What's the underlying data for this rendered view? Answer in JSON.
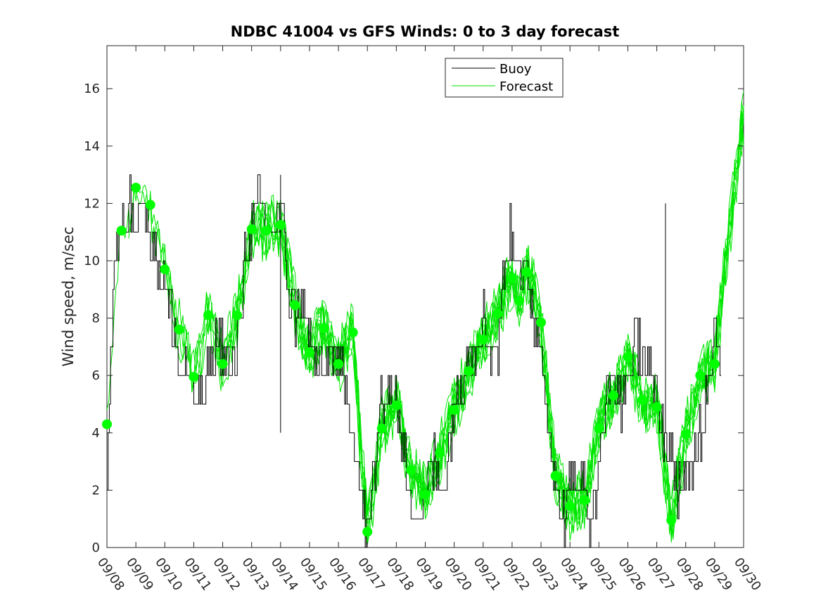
{
  "chart_data": {
    "type": "line",
    "title": "NDBC 41004 vs GFS Winds: 0 to 3 day forecast",
    "ylabel": "Wind speed, m/sec",
    "xlabel": "",
    "ylim": [
      0,
      17.5
    ],
    "yticks": [
      0,
      2,
      4,
      6,
      8,
      10,
      12,
      14,
      16
    ],
    "x_range_days": [
      8,
      30
    ],
    "x_tick_labels": [
      "09/08",
      "09/09",
      "09/10",
      "09/11",
      "09/12",
      "09/13",
      "09/14",
      "09/15",
      "09/16",
      "09/17",
      "09/18",
      "09/19",
      "09/20",
      "09/21",
      "09/22",
      "09/23",
      "09/24",
      "09/25",
      "09/26",
      "09/27",
      "09/28",
      "09/29",
      "09/30"
    ],
    "legend": {
      "placement": "top-center-right",
      "entries": [
        "Buoy",
        "Forecast"
      ]
    },
    "colors": {
      "buoy": "#000000",
      "forecast": "#00e600",
      "analysis_marker": "#00ff00",
      "axes": "#262626"
    },
    "grid": false,
    "series": [
      {
        "name": "Buoy",
        "x": [
          8.0,
          8.25,
          8.5,
          8.75,
          9.0,
          9.25,
          9.5,
          9.75,
          10.0,
          10.25,
          10.5,
          10.75,
          11.0,
          11.25,
          11.5,
          11.75,
          12.0,
          12.25,
          12.5,
          12.75,
          13.0,
          13.25,
          13.5,
          13.75,
          14.0,
          14.25,
          14.5,
          14.75,
          15.0,
          15.25,
          15.5,
          15.75,
          16.0,
          16.25,
          16.5,
          16.75,
          17.0,
          17.25,
          17.5,
          17.75,
          18.0,
          18.25,
          18.5,
          18.75,
          19.0,
          19.25,
          19.5,
          19.75,
          20.0,
          20.25,
          20.5,
          20.75,
          21.0,
          21.25,
          21.5,
          21.75,
          22.0,
          22.25,
          22.5,
          22.75,
          23.0,
          23.25,
          23.5,
          23.75,
          24.0,
          24.25,
          24.5,
          24.75,
          25.0,
          25.25,
          25.5,
          25.75,
          26.0,
          26.25,
          26.5,
          26.75,
          27.0,
          27.25,
          27.5,
          27.75,
          28.0,
          28.25,
          28.5,
          28.75,
          29.0,
          29.25
        ],
        "values": [
          3,
          10,
          11,
          12,
          12,
          12,
          11,
          10,
          9,
          8,
          6,
          6,
          5,
          5,
          6,
          7,
          7,
          6,
          7,
          10,
          11,
          12,
          11,
          11,
          12,
          9,
          8,
          9,
          7,
          6,
          6,
          7,
          6,
          6,
          4,
          2,
          0.5,
          3,
          5,
          6,
          5,
          3,
          2,
          1,
          2,
          3,
          2,
          3,
          5,
          6,
          7,
          7,
          8,
          7,
          7,
          10,
          11,
          10,
          9,
          8,
          7,
          5,
          2,
          1,
          2,
          3,
          2,
          1,
          3,
          5,
          6,
          5,
          6,
          7,
          7,
          6,
          5,
          4,
          3,
          2,
          2,
          3,
          4,
          6,
          8,
          6
        ]
      },
      {
        "name": "Forecast",
        "x": [
          8.0,
          8.5,
          9.0,
          9.5,
          10.0,
          10.5,
          11.0,
          11.5,
          12.0,
          12.5,
          13.0,
          13.5,
          14.0,
          14.5,
          15.0,
          15.5,
          16.0,
          16.5,
          17.0,
          17.5,
          18.0,
          18.5,
          19.0,
          19.5,
          20.0,
          20.5,
          21.0,
          21.5,
          22.0,
          22.25,
          22.5,
          22.75,
          23.0,
          23.5,
          24.0,
          24.5,
          25.0,
          25.5,
          26.0,
          26.5,
          27.0,
          27.5,
          28.0,
          28.5,
          29.0,
          29.5,
          30.0
        ],
        "values": [
          4.3,
          11.0,
          12.5,
          11.9,
          9.7,
          7.6,
          5.9,
          8.1,
          6.4,
          8.1,
          11.1,
          11.1,
          11.2,
          8.4,
          6.8,
          7.7,
          6.4,
          7.5,
          0.5,
          4.2,
          5.0,
          2.7,
          1.8,
          3.3,
          4.8,
          6.2,
          7.2,
          8.2,
          9.4,
          8.6,
          9.6,
          9.0,
          7.8,
          2.5,
          1.4,
          1.6,
          4.2,
          5.3,
          6.6,
          5.2,
          4.9,
          1.0,
          3.9,
          6.0,
          6.4,
          11.0,
          15.0
        ]
      }
    ],
    "analysis_points": {
      "x": [
        8.0,
        8.5,
        9.0,
        9.5,
        10.0,
        10.5,
        11.0,
        11.5,
        12.0,
        12.5,
        13.0,
        13.5,
        14.0,
        14.5,
        15.0,
        15.5,
        16.0,
        16.5,
        17.0,
        17.5,
        18.0,
        18.5,
        19.0,
        19.5,
        20.0,
        20.5,
        21.0,
        21.5,
        22.0,
        22.25,
        22.5,
        23.0,
        23.5,
        24.0,
        24.5,
        25.0,
        25.5,
        26.0,
        26.5,
        27.0,
        27.5,
        28.0,
        28.5,
        29.0
      ],
      "values": [
        4.3,
        11.05,
        12.55,
        11.95,
        9.7,
        7.6,
        5.95,
        8.1,
        6.4,
        8.1,
        11.1,
        11.05,
        11.25,
        8.45,
        6.8,
        7.65,
        6.4,
        7.5,
        0.55,
        4.15,
        4.95,
        2.7,
        1.85,
        3.3,
        4.8,
        6.15,
        7.25,
        8.15,
        9.4,
        8.6,
        9.6,
        7.85,
        2.5,
        1.45,
        1.65,
        4.15,
        5.3,
        6.65,
        5.15,
        4.9,
        0.95,
        3.95,
        6.0,
        6.4
      ]
    }
  }
}
